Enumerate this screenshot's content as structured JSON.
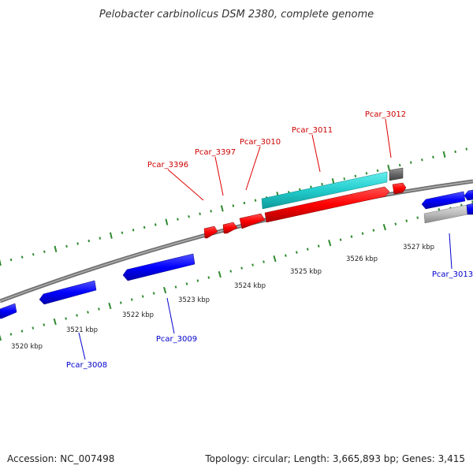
{
  "title": "Pelobacter carbinolicus DSM 2380, complete genome",
  "footer": {
    "accession": "Accession: NC_007498",
    "summary": "Topology: circular; Length: 3,665,893 bp; Genes: 3,415"
  },
  "colors": {
    "forward_selected": "#ff0000",
    "reverse_strand": "#0000ff",
    "highlight": "#00cccc",
    "other_feature": "#aaaaaa",
    "tick_mark": "#2f8a2f",
    "label_forward": "#cc0000",
    "label_reverse": "#0000cc"
  },
  "scale_labels": [
    "3520 kbp",
    "3521 kbp",
    "3522 kbp",
    "3523 kbp",
    "3524 kbp",
    "3525 kbp",
    "3526 kbp",
    "3527 kbp"
  ],
  "gene_labels_top": [
    "Pcar_3396",
    "Pcar_3397",
    "Pcar_3010",
    "Pcar_3011",
    "Pcar_3012"
  ],
  "gene_labels_bottom": [
    "Pcar_3008",
    "Pcar_3009",
    "Pcar_3013"
  ]
}
